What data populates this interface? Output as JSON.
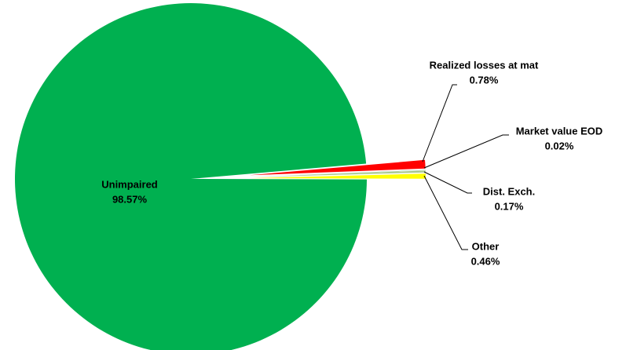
{
  "chart_data": {
    "type": "pie",
    "categories": [
      "Unimpaired",
      "Realized losses at mat",
      "Market value EOD",
      "Dist. Exch.",
      "Other"
    ],
    "values": [
      98.57,
      0.78,
      0.02,
      0.17,
      0.46
    ],
    "value_labels": [
      "98.57%",
      "0.78%",
      "0.02%",
      "0.17%",
      "0.46%"
    ],
    "colors": [
      "#00b050",
      "#ff0000",
      "#4f8f4f",
      "#a9c98f",
      "#ffff00"
    ]
  }
}
